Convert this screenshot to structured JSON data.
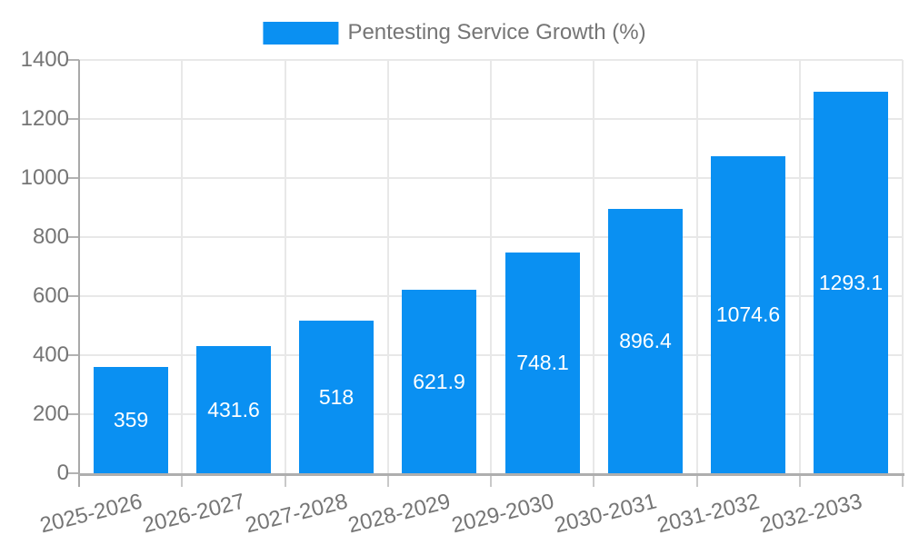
{
  "chart_data": {
    "type": "bar",
    "title": "Pentesting Service Growth (%)",
    "legend": {
      "label": "Pentesting Service Growth (%)",
      "position": "top-center"
    },
    "categories": [
      "2025-2026",
      "2026-2027",
      "2027-2028",
      "2028-2029",
      "2029-2030",
      "2030-2031",
      "2031-2032",
      "2032-2033"
    ],
    "series": [
      {
        "name": "Pentesting Service Growth (%)",
        "values": [
          359,
          431.6,
          518,
          621.9,
          748.1,
          896.4,
          1074.6,
          1293.1
        ]
      }
    ],
    "bar_value_labels": [
      "359",
      "431.6",
      "518",
      "621.9",
      "748.1",
      "896.4",
      "1074.6",
      "1293.1"
    ],
    "xlabel": "",
    "ylabel": "",
    "ylim": [
      0,
      1400
    ],
    "yticks": [
      0,
      200,
      400,
      600,
      800,
      1000,
      1200,
      1400
    ],
    "grid": true,
    "colors": {
      "bar": "#0a90f2",
      "value_text": "#ffffff",
      "axis_text": "#757575",
      "gridline": "#e8e8e8",
      "axis_line": "#a9a9a9",
      "baseline": "#aeaeae",
      "background": "#ffffff"
    }
  }
}
